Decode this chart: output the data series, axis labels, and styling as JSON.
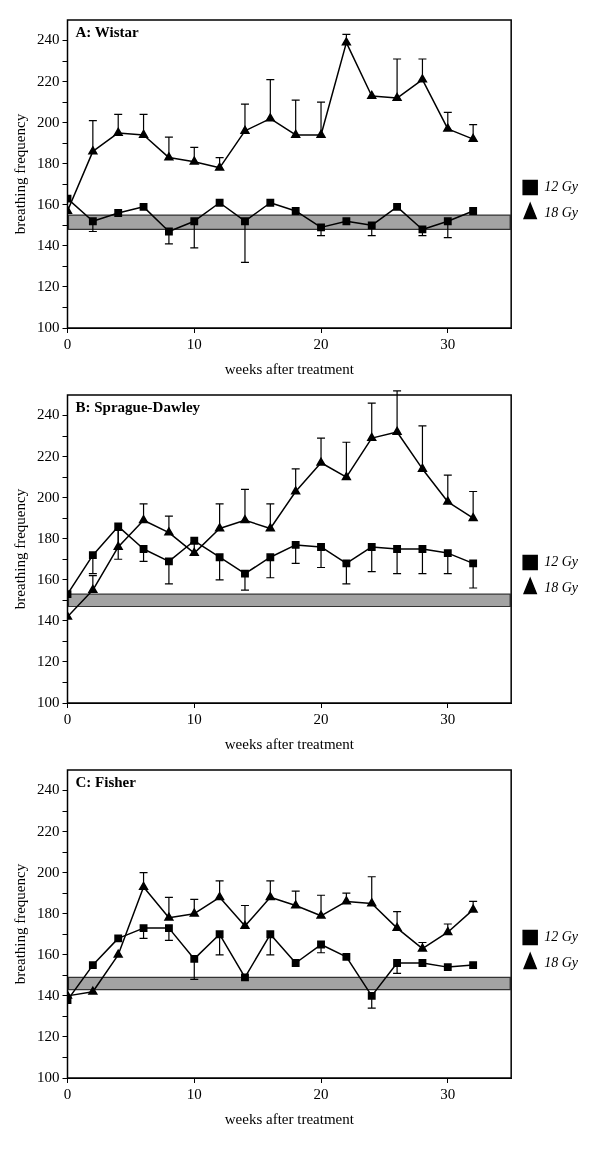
{
  "chart_data": [
    {
      "type": "line",
      "title": "A: Wistar",
      "xlabel": "weeks after treatment",
      "ylabel": "breathing frequency",
      "x": [
        0,
        2,
        4,
        6,
        8,
        10,
        12,
        14,
        16,
        18,
        20,
        22,
        24,
        26,
        28,
        30,
        32
      ],
      "xlim": [
        0,
        35
      ],
      "xticks": [
        0,
        10,
        20,
        30
      ],
      "ylim": [
        100,
        250
      ],
      "yticks": [
        100,
        {
          "value": 110,
          "label": null
        },
        120,
        {
          "value": 130,
          "label": null
        },
        140,
        {
          "value": 150,
          "label": null
        },
        160,
        {
          "value": 170,
          "label": null
        },
        180,
        {
          "value": 190,
          "label": null
        },
        200,
        {
          "value": 210,
          "label": null
        },
        220,
        {
          "value": 230,
          "label": null
        },
        240
      ],
      "grid": false,
      "legend": "right",
      "bands": [
        {
          "axis": "y",
          "from": 148,
          "to": 155,
          "color": "#333333"
        }
      ],
      "series": [
        {
          "name": "12 Gy",
          "color": "#000000",
          "marker": "square",
          "values": [
            163,
            152,
            156,
            159,
            147,
            152,
            161,
            152,
            161,
            157,
            149,
            152,
            150,
            159,
            148,
            152,
            157
          ],
          "errors": [
            null,
            [
              147,
              152
            ],
            null,
            null,
            [
              141,
              147
            ],
            [
              139,
              152
            ],
            null,
            [
              132,
              152
            ],
            null,
            null,
            [
              145,
              149
            ],
            null,
            [
              145,
              150
            ],
            null,
            [
              145,
              148
            ],
            [
              144,
              152
            ],
            null
          ]
        },
        {
          "name": "18 Gy",
          "color": "#000000",
          "marker": "triangle",
          "values": [
            157,
            186,
            195,
            194,
            183,
            181,
            178,
            196,
            202,
            194,
            194,
            239,
            213,
            212,
            221,
            197,
            192
          ],
          "errors": [
            null,
            [
              186,
              201
            ],
            [
              195,
              204
            ],
            [
              194,
              204
            ],
            [
              183,
              193
            ],
            [
              181,
              188
            ],
            [
              178,
              183
            ],
            [
              196,
              209
            ],
            [
              202,
              221
            ],
            [
              194,
              211
            ],
            [
              194,
              210
            ],
            [
              239,
              243
            ],
            null,
            [
              212,
              231
            ],
            [
              221,
              231
            ],
            [
              197,
              205
            ],
            [
              192,
              199
            ]
          ]
        }
      ]
    },
    {
      "type": "line",
      "title": "B: Sprague-Dawley",
      "xlabel": "weeks after treatment",
      "ylabel": "breathing frequency",
      "x": [
        0,
        2,
        4,
        6,
        8,
        10,
        12,
        14,
        16,
        18,
        20,
        22,
        24,
        26,
        28,
        30,
        32
      ],
      "xlim": [
        0,
        35
      ],
      "xticks": [
        0,
        10,
        20,
        30
      ],
      "ylim": [
        100,
        250
      ],
      "yticks": [
        100,
        {
          "value": 110,
          "label": null
        },
        120,
        {
          "value": 130,
          "label": null
        },
        140,
        {
          "value": 150,
          "label": null
        },
        160,
        {
          "value": 170,
          "label": null
        },
        180,
        {
          "value": 190,
          "label": null
        },
        200,
        {
          "value": 210,
          "label": null
        },
        220,
        {
          "value": 230,
          "label": null
        },
        240
      ],
      "grid": false,
      "legend": "right",
      "bands": [
        {
          "axis": "y",
          "from": 147,
          "to": 153,
          "color": "#333333"
        }
      ],
      "series": [
        {
          "name": "12 Gy",
          "color": "#000000",
          "marker": "square",
          "values": [
            153,
            172,
            186,
            175,
            169,
            179,
            171,
            163,
            171,
            177,
            176,
            168,
            176,
            175,
            175,
            173,
            168
          ],
          "errors": [
            null,
            [
              163,
              172
            ],
            [
              170,
              186
            ],
            [
              169,
              175
            ],
            [
              158,
              169
            ],
            null,
            [
              160,
              171
            ],
            [
              155,
              163
            ],
            [
              161,
              171
            ],
            [
              168,
              177
            ],
            [
              166,
              176
            ],
            [
              158,
              168
            ],
            [
              164,
              176
            ],
            [
              163,
              175
            ],
            [
              163,
              175
            ],
            [
              163,
              173
            ],
            [
              156,
              168
            ]
          ]
        },
        {
          "name": "18 Gy",
          "color": "#000000",
          "marker": "triangle",
          "values": [
            142,
            155,
            176,
            189,
            183,
            173,
            185,
            189,
            185,
            203,
            217,
            210,
            229,
            232,
            214,
            198,
            190
          ],
          "errors": [
            null,
            [
              155,
              162
            ],
            [
              176,
              184
            ],
            [
              189,
              197
            ],
            [
              183,
              191
            ],
            [
              173,
              178
            ],
            [
              185,
              197
            ],
            [
              189,
              204
            ],
            [
              185,
              197
            ],
            [
              203,
              214
            ],
            [
              217,
              229
            ],
            [
              210,
              227
            ],
            [
              229,
              246
            ],
            [
              232,
              252
            ],
            [
              214,
              235
            ],
            [
              198,
              211
            ],
            [
              190,
              203
            ]
          ]
        }
      ]
    },
    {
      "type": "line",
      "title": "C: Fisher",
      "xlabel": "weeks after treatment",
      "ylabel": "breathing frequency",
      "x": [
        0,
        2,
        4,
        6,
        8,
        10,
        12,
        14,
        16,
        18,
        20,
        22,
        24,
        26,
        28,
        30,
        32
      ],
      "xlim": [
        0,
        35
      ],
      "xticks": [
        0,
        10,
        20,
        30
      ],
      "ylim": [
        100,
        250
      ],
      "yticks": [
        100,
        {
          "value": 110,
          "label": null
        },
        120,
        {
          "value": 130,
          "label": null
        },
        140,
        {
          "value": 150,
          "label": null
        },
        160,
        {
          "value": 170,
          "label": null
        },
        180,
        {
          "value": 190,
          "label": null
        },
        200,
        {
          "value": 210,
          "label": null
        },
        220,
        {
          "value": 230,
          "label": null
        },
        240
      ],
      "grid": false,
      "legend": "right",
      "bands": [
        {
          "axis": "y",
          "from": 143,
          "to": 149,
          "color": "#333333"
        }
      ],
      "series": [
        {
          "name": "12 Gy",
          "color": "#000000",
          "marker": "square",
          "values": [
            138,
            155,
            168,
            173,
            173,
            158,
            170,
            149,
            170,
            156,
            165,
            159,
            140,
            156,
            156,
            154,
            155
          ],
          "errors": [
            null,
            null,
            null,
            [
              168,
              173
            ],
            [
              167,
              173
            ],
            [
              148,
              158
            ],
            [
              160,
              170
            ],
            null,
            [
              160,
              170
            ],
            null,
            [
              161,
              165
            ],
            null,
            [
              134,
              140
            ],
            [
              151,
              156
            ],
            null,
            null,
            null
          ]
        },
        {
          "name": "18 Gy",
          "color": "#000000",
          "marker": "triangle",
          "values": [
            140,
            142,
            160,
            193,
            178,
            180,
            188,
            174,
            188,
            184,
            179,
            186,
            185,
            173,
            163,
            171,
            182
          ],
          "errors": [
            null,
            null,
            null,
            [
              193,
              200
            ],
            [
              178,
              188
            ],
            [
              180,
              187
            ],
            [
              188,
              196
            ],
            [
              174,
              184
            ],
            [
              188,
              196
            ],
            [
              184,
              191
            ],
            [
              179,
              189
            ],
            [
              186,
              190
            ],
            [
              185,
              198
            ],
            [
              173,
              181
            ],
            [
              163,
              166
            ],
            [
              171,
              175
            ],
            [
              182,
              186
            ]
          ]
        }
      ]
    }
  ]
}
